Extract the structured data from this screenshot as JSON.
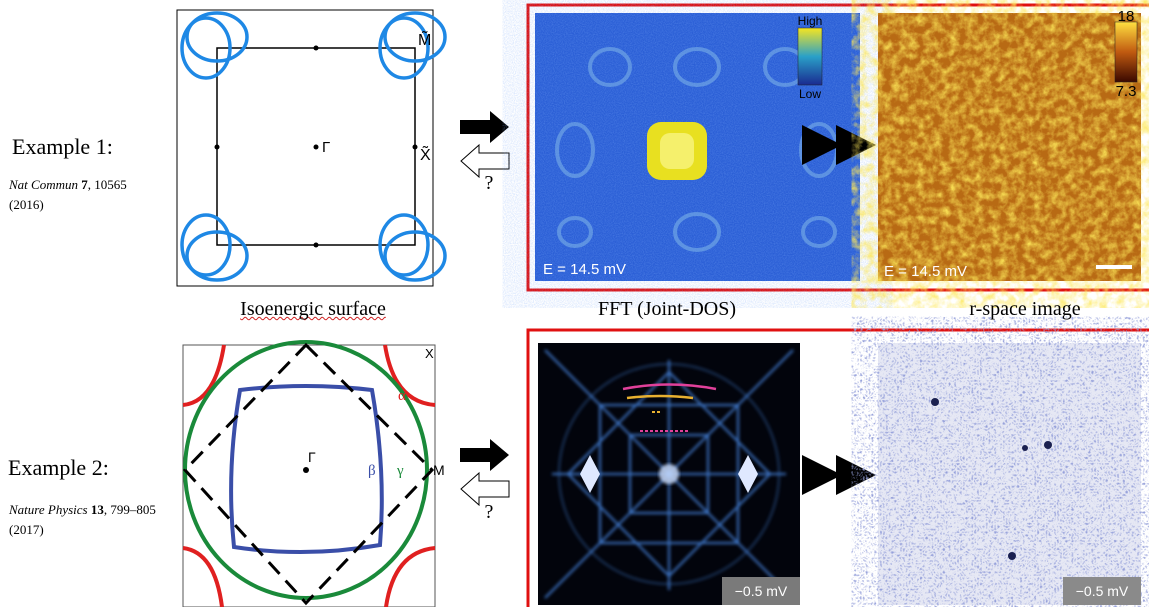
{
  "examples": [
    {
      "label": "Example 1:",
      "journal": "Nat Commun",
      "volume": "7",
      "details": ", 10565 (2016)",
      "surface_labels": [
        "M̃",
        "Γ",
        "X̃"
      ],
      "question": "?",
      "fft_labels": {
        "scale_high": "High",
        "scale_low": "Low",
        "energy": "E = 14.5 mV"
      },
      "rspace_labels": {
        "scale_max": "18",
        "scale_min": "7.3",
        "energy": "E = 14.5 mV"
      }
    },
    {
      "label": "Example 2:",
      "journal": "Nature Physics",
      "volume": "13",
      "details": ", 799–805 (2017)",
      "surface_labels": [
        "X",
        "α",
        "Γ",
        "M",
        "β",
        "γ"
      ],
      "question": "?",
      "fft_labels": {
        "energy": "−0.5 mV"
      },
      "rspace_labels": {
        "energy": "−0.5 mV"
      }
    }
  ],
  "column_labels": [
    "Isoenergic surface",
    "FFT (Joint-DOS)",
    "r-space image"
  ]
}
